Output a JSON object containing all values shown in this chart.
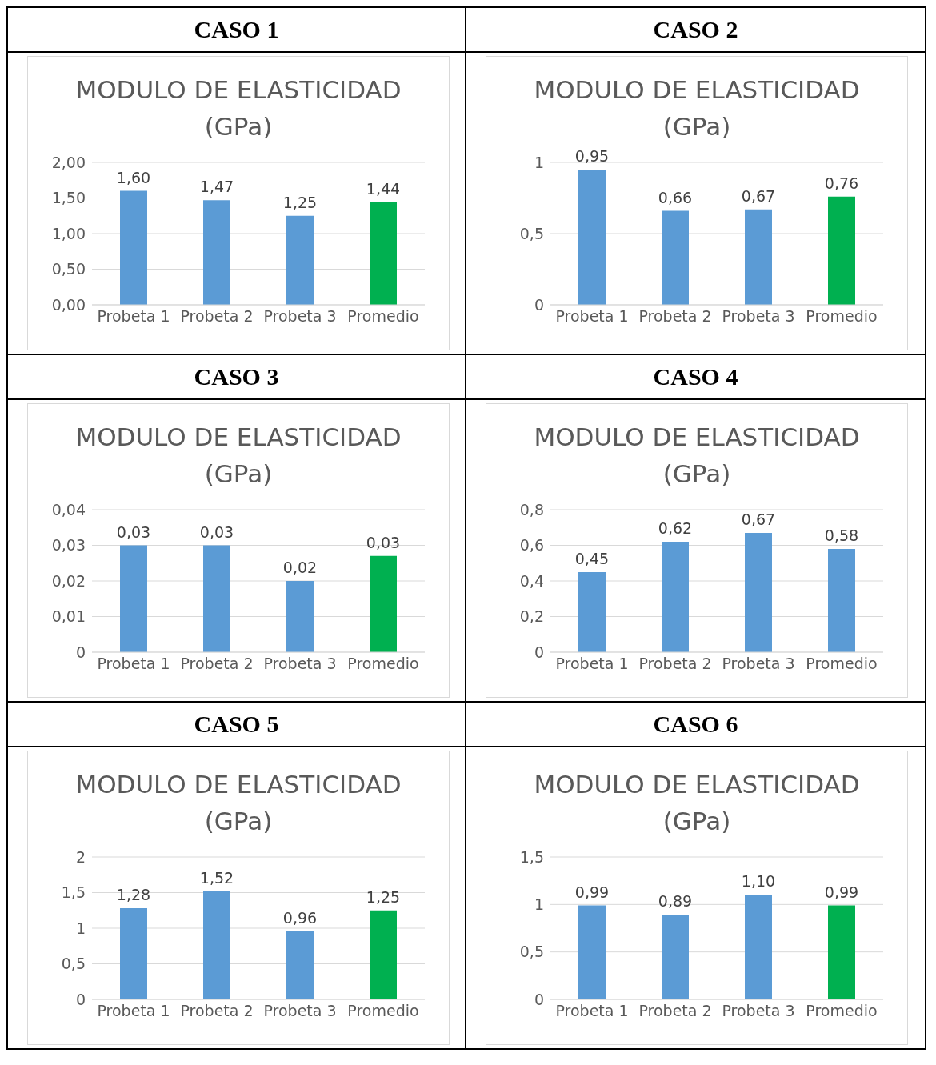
{
  "chart_data": [
    {
      "type": "bar",
      "title": "CASO 1",
      "subtitle": "MODULO DE ELASTICIDAD (GPa)",
      "categories": [
        "Probeta 1",
        "Probeta 2",
        "Probeta 3",
        "Promedio"
      ],
      "values": [
        1.6,
        1.47,
        1.25,
        1.44
      ],
      "value_labels": [
        "1,60",
        "1,47",
        "1,25",
        "1,44"
      ],
      "colors": [
        "#5b9bd5",
        "#5b9bd5",
        "#5b9bd5",
        "#00b050"
      ],
      "ylim": [
        0,
        2
      ],
      "yticks": [
        {
          "value": 0,
          "label": "0,00"
        },
        {
          "value": 0.5,
          "label": "0,50"
        },
        {
          "value": 1,
          "label": "1,00"
        },
        {
          "value": 1.5,
          "label": "1,50"
        },
        {
          "value": 2,
          "label": "2,00"
        }
      ],
      "grid": "y",
      "legend": false
    },
    {
      "type": "bar",
      "title": "CASO 2",
      "subtitle": "MODULO DE ELASTICIDAD (GPa)",
      "categories": [
        "Probeta 1",
        "Probeta 2",
        "Probeta 3",
        "Promedio"
      ],
      "values": [
        0.95,
        0.66,
        0.67,
        0.76
      ],
      "value_labels": [
        "0,95",
        "0,66",
        "0,67",
        "0,76"
      ],
      "colors": [
        "#5b9bd5",
        "#5b9bd5",
        "#5b9bd5",
        "#00b050"
      ],
      "ylim": [
        0,
        1
      ],
      "yticks": [
        0,
        {
          "value": 0.5,
          "label": "0,5"
        },
        1
      ],
      "grid": "y",
      "legend": false
    },
    {
      "type": "bar",
      "title": "CASO 3",
      "subtitle": "MODULO DE ELASTICIDAD (GPa)",
      "categories": [
        "Probeta 1",
        "Probeta 2",
        "Probeta 3",
        "Promedio"
      ],
      "values": [
        0.03,
        0.03,
        0.02,
        0.027
      ],
      "value_labels": [
        "0,03",
        "0,03",
        "0,02",
        "0,03"
      ],
      "colors": [
        "#5b9bd5",
        "#5b9bd5",
        "#5b9bd5",
        "#00b050"
      ],
      "ylim": [
        0,
        0.04
      ],
      "yticks": [
        0,
        {
          "value": 0.01,
          "label": "0,01"
        },
        {
          "value": 0.02,
          "label": "0,02"
        },
        {
          "value": 0.03,
          "label": "0,03"
        },
        {
          "value": 0.04,
          "label": "0,04"
        }
      ],
      "grid": "y",
      "legend": false
    },
    {
      "type": "bar",
      "title": "CASO 4",
      "subtitle": "MODULO DE ELASTICIDAD (GPa)",
      "categories": [
        "Probeta 1",
        "Probeta 2",
        "Probeta 3",
        "Promedio"
      ],
      "values": [
        0.45,
        0.62,
        0.67,
        0.58
      ],
      "value_labels": [
        "0,45",
        "0,62",
        "0,67",
        "0,58"
      ],
      "colors": [
        "#5b9bd5",
        "#5b9bd5",
        "#5b9bd5",
        "#5b9bd5"
      ],
      "ylim": [
        0,
        0.8
      ],
      "yticks": [
        0,
        {
          "value": 0.2,
          "label": "0,2"
        },
        {
          "value": 0.4,
          "label": "0,4"
        },
        {
          "value": 0.6,
          "label": "0,6"
        },
        {
          "value": 0.8,
          "label": "0,8"
        }
      ],
      "grid": "y",
      "legend": false
    },
    {
      "type": "bar",
      "title": "CASO 5",
      "subtitle": "MODULO DE ELASTICIDAD (GPa)",
      "categories": [
        "Probeta 1",
        "Probeta 2",
        "Probeta 3",
        "Promedio"
      ],
      "values": [
        1.28,
        1.52,
        0.96,
        1.25
      ],
      "value_labels": [
        "1,28",
        "1,52",
        "0,96",
        "1,25"
      ],
      "colors": [
        "#5b9bd5",
        "#5b9bd5",
        "#5b9bd5",
        "#00b050"
      ],
      "ylim": [
        0,
        2
      ],
      "yticks": [
        0,
        {
          "value": 0.5,
          "label": "0,5"
        },
        1,
        {
          "value": 1.5,
          "label": "1,5"
        },
        2
      ],
      "grid": "y",
      "legend": false
    },
    {
      "type": "bar",
      "title": "CASO 6",
      "subtitle": "MODULO DE ELASTICIDAD (GPa)",
      "categories": [
        "Probeta 1",
        "Probeta 2",
        "Probeta 3",
        "Promedio"
      ],
      "values": [
        0.99,
        0.89,
        1.1,
        0.99
      ],
      "value_labels": [
        "0,99",
        "0,89",
        "1,10",
        "0,99"
      ],
      "colors": [
        "#5b9bd5",
        "#5b9bd5",
        "#5b9bd5",
        "#00b050"
      ],
      "ylim": [
        0,
        1.5
      ],
      "yticks": [
        0,
        {
          "value": 0.5,
          "label": "0,5"
        },
        1,
        {
          "value": 1.5,
          "label": "1,5"
        }
      ],
      "grid": "y",
      "legend": false
    }
  ]
}
